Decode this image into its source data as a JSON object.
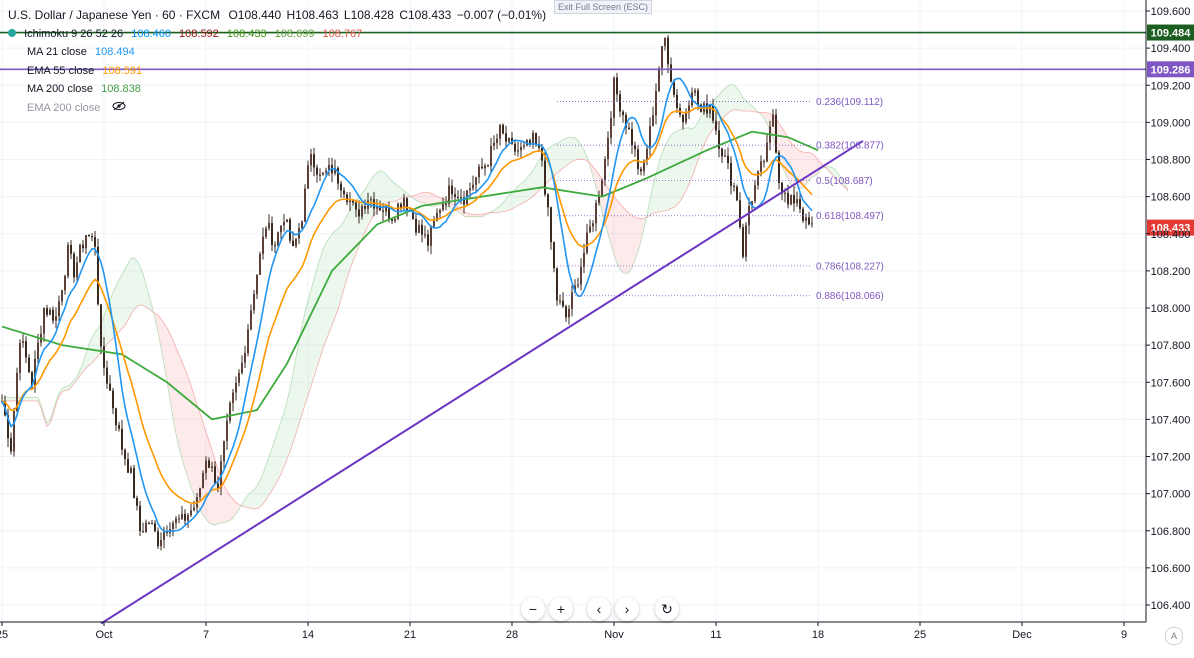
{
  "header": {
    "symbol": "U.S. Dollar / Japanese Yen · 60 · FXCM",
    "ohlc": {
      "o": "O108.440",
      "h": "H108.463",
      "l": "L108.428",
      "c": "C108.433",
      "chg": "−0.007 (−0.01%)"
    },
    "exit_fullscreen": "Exit Full Screen (ESC)"
  },
  "indicators": [
    {
      "label": "Ichimoku 9 26 52 26",
      "values": [
        "108.460",
        "108.592",
        "108.433",
        "108.699",
        "108.767"
      ],
      "colors": [
        "#0496ff",
        "#991515",
        "#459915",
        "#65a23f",
        "#e2574c"
      ]
    },
    {
      "label": "MA 21 close",
      "values": [
        "108.494"
      ],
      "colors": [
        "#2196f3"
      ]
    },
    {
      "label": "EMA 55 close",
      "values": [
        "108.591"
      ],
      "colors": [
        "#ff9800"
      ]
    },
    {
      "label": "MA 200 close",
      "values": [
        "108.838"
      ],
      "colors": [
        "#43a047"
      ]
    },
    {
      "label": "EMA 200 close",
      "values": [],
      "colors": [],
      "hidden": true
    }
  ],
  "colors": {
    "up": "#26a69a",
    "down": "#ef5350",
    "candle": "#3a2a20",
    "ma21": "#2196f3",
    "ema55": "#ff9800",
    "ma200": "#3daa3d",
    "trend": "#6b34c2",
    "fib": "#7e57c2",
    "hline_green": "#1b5e20",
    "hline_purple": "#7e57c2",
    "last_price": "#e53935"
  },
  "chart_data": {
    "type": "line",
    "title": "",
    "ylim": [
      106.3,
      109.65
    ],
    "y_ticks": [
      "109.600",
      "109.400",
      "109.200",
      "109.000",
      "108.800",
      "108.600",
      "108.400",
      "108.200",
      "108.000",
      "107.800",
      "107.600",
      "107.400",
      "107.200",
      "107.000",
      "106.800",
      "106.600",
      "106.400"
    ],
    "y_tick_values": [
      109.6,
      109.4,
      109.2,
      109.0,
      108.8,
      108.6,
      108.4,
      108.2,
      108.0,
      107.8,
      107.6,
      107.4,
      107.2,
      107.0,
      106.8,
      106.6,
      106.4
    ],
    "x_ticks": [
      "25",
      "Oct",
      "7",
      "14",
      "21",
      "28",
      "Nov",
      "11",
      "18",
      "25",
      "Dec",
      "9"
    ],
    "x_tick_index": [
      0,
      34,
      68,
      102,
      136,
      170,
      204,
      238,
      272,
      306,
      340,
      374
    ],
    "bar_count": 285,
    "horizontal_levels": [
      {
        "price": 109.484,
        "label": "109.484",
        "color": "#1b5e20"
      },
      {
        "price": 109.286,
        "label": "109.286",
        "color": "#7e57c2"
      }
    ],
    "last_price": {
      "price": 108.433,
      "label": "108.433"
    },
    "fib_levels": [
      {
        "price": 109.112,
        "label": "0.236(109.112)"
      },
      {
        "price": 108.877,
        "label": "0.382(108.877)"
      },
      {
        "price": 108.687,
        "label": "0.5(108.687)"
      },
      {
        "price": 108.497,
        "label": "0.618(108.497)"
      },
      {
        "price": 108.227,
        "label": "0.786(108.227)"
      },
      {
        "price": 108.066,
        "label": "0.886(108.066)"
      }
    ],
    "trendline": [
      {
        "i": 33,
        "price": 106.3
      },
      {
        "i": 287,
        "price": 108.9
      }
    ],
    "anchors": [
      {
        "i": 0,
        "p": 107.5
      },
      {
        "i": 3,
        "p": 107.25
      },
      {
        "i": 6,
        "p": 107.85
      },
      {
        "i": 10,
        "p": 107.6
      },
      {
        "i": 14,
        "p": 108.0
      },
      {
        "i": 18,
        "p": 107.95
      },
      {
        "i": 22,
        "p": 108.3
      },
      {
        "i": 24,
        "p": 108.2
      },
      {
        "i": 28,
        "p": 108.4
      },
      {
        "i": 31,
        "p": 108.35
      },
      {
        "i": 33,
        "p": 107.75
      },
      {
        "i": 36,
        "p": 107.55
      },
      {
        "i": 40,
        "p": 107.25
      },
      {
        "i": 43,
        "p": 107.1
      },
      {
        "i": 46,
        "p": 106.8
      },
      {
        "i": 49,
        "p": 106.85
      },
      {
        "i": 52,
        "p": 106.75
      },
      {
        "i": 56,
        "p": 106.85
      },
      {
        "i": 60,
        "p": 106.85
      },
      {
        "i": 65,
        "p": 106.95
      },
      {
        "i": 68,
        "p": 107.2
      },
      {
        "i": 72,
        "p": 107.05
      },
      {
        "i": 76,
        "p": 107.45
      },
      {
        "i": 80,
        "p": 107.7
      },
      {
        "i": 84,
        "p": 108.1
      },
      {
        "i": 88,
        "p": 108.45
      },
      {
        "i": 91,
        "p": 108.35
      },
      {
        "i": 94,
        "p": 108.5
      },
      {
        "i": 97,
        "p": 108.3
      },
      {
        "i": 100,
        "p": 108.5
      },
      {
        "i": 103,
        "p": 108.85
      },
      {
        "i": 106,
        "p": 108.7
      },
      {
        "i": 110,
        "p": 108.75
      },
      {
        "i": 114,
        "p": 108.65
      },
      {
        "i": 118,
        "p": 108.5
      },
      {
        "i": 122,
        "p": 108.6
      },
      {
        "i": 126,
        "p": 108.55
      },
      {
        "i": 130,
        "p": 108.5
      },
      {
        "i": 134,
        "p": 108.6
      },
      {
        "i": 138,
        "p": 108.45
      },
      {
        "i": 142,
        "p": 108.35
      },
      {
        "i": 146,
        "p": 108.55
      },
      {
        "i": 150,
        "p": 108.65
      },
      {
        "i": 154,
        "p": 108.6
      },
      {
        "i": 158,
        "p": 108.7
      },
      {
        "i": 162,
        "p": 108.8
      },
      {
        "i": 166,
        "p": 108.95
      },
      {
        "i": 170,
        "p": 108.85
      },
      {
        "i": 174,
        "p": 108.85
      },
      {
        "i": 177,
        "p": 108.9
      },
      {
        "i": 180,
        "p": 108.8
      },
      {
        "i": 182,
        "p": 108.5
      },
      {
        "i": 185,
        "p": 108.05
      },
      {
        "i": 188,
        "p": 107.95
      },
      {
        "i": 191,
        "p": 108.1
      },
      {
        "i": 194,
        "p": 108.3
      },
      {
        "i": 198,
        "p": 108.55
      },
      {
        "i": 201,
        "p": 108.8
      },
      {
        "i": 204,
        "p": 109.2
      },
      {
        "i": 207,
        "p": 109.05
      },
      {
        "i": 210,
        "p": 108.9
      },
      {
        "i": 213,
        "p": 108.7
      },
      {
        "i": 216,
        "p": 108.95
      },
      {
        "i": 219,
        "p": 109.3
      },
      {
        "i": 221,
        "p": 109.45
      },
      {
        "i": 224,
        "p": 109.15
      },
      {
        "i": 227,
        "p": 109.0
      },
      {
        "i": 230,
        "p": 109.2
      },
      {
        "i": 233,
        "p": 109.05
      },
      {
        "i": 236,
        "p": 109.1
      },
      {
        "i": 239,
        "p": 108.9
      },
      {
        "i": 242,
        "p": 108.75
      },
      {
        "i": 245,
        "p": 108.6
      },
      {
        "i": 247,
        "p": 108.3
      },
      {
        "i": 249,
        "p": 108.55
      },
      {
        "i": 252,
        "p": 108.7
      },
      {
        "i": 255,
        "p": 108.85
      },
      {
        "i": 257,
        "p": 109.05
      },
      {
        "i": 259,
        "p": 108.7
      },
      {
        "i": 262,
        "p": 108.55
      },
      {
        "i": 265,
        "p": 108.6
      },
      {
        "i": 268,
        "p": 108.45
      },
      {
        "i": 270,
        "p": 108.43
      }
    ],
    "ma200_points": [
      {
        "i": 0,
        "p": 107.9
      },
      {
        "i": 20,
        "p": 107.8
      },
      {
        "i": 40,
        "p": 107.75
      },
      {
        "i": 55,
        "p": 107.6
      },
      {
        "i": 70,
        "p": 107.4
      },
      {
        "i": 85,
        "p": 107.45
      },
      {
        "i": 95,
        "p": 107.7
      },
      {
        "i": 110,
        "p": 108.2
      },
      {
        "i": 125,
        "p": 108.45
      },
      {
        "i": 140,
        "p": 108.55
      },
      {
        "i": 160,
        "p": 108.6
      },
      {
        "i": 180,
        "p": 108.65
      },
      {
        "i": 200,
        "p": 108.6
      },
      {
        "i": 215,
        "p": 108.7
      },
      {
        "i": 235,
        "p": 108.85
      },
      {
        "i": 250,
        "p": 108.95
      },
      {
        "i": 262,
        "p": 108.92
      },
      {
        "i": 272,
        "p": 108.85
      }
    ]
  },
  "nav": {
    "zoom_out": "−",
    "zoom_in": "+",
    "back": "‹",
    "forward": "›",
    "reset": "↻",
    "auto": "A"
  }
}
